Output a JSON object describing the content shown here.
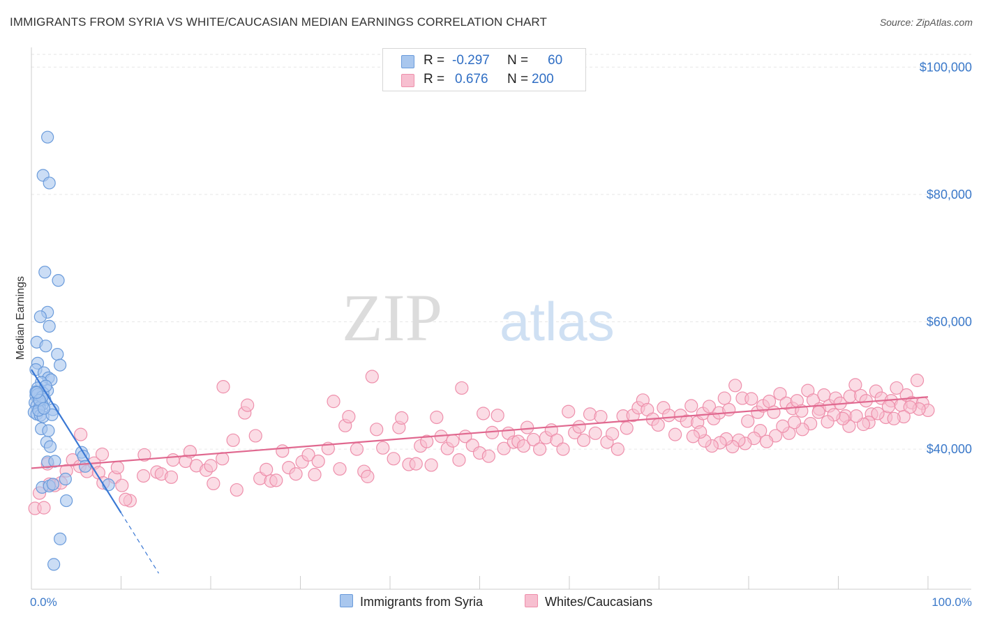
{
  "title": "IMMIGRANTS FROM SYRIA VS WHITE/CAUCASIAN MEDIAN EARNINGS CORRELATION CHART",
  "source": "Source: ZipAtlas.com",
  "watermark": {
    "left": "ZIP",
    "right": "atlas"
  },
  "colors": {
    "blue_fill": "#a9c7ee",
    "blue_stroke": "#6a9bdb",
    "blue_line": "#3a78d4",
    "pink_fill": "#f7bfd0",
    "pink_stroke": "#ee8fab",
    "pink_line": "#e0688f",
    "axis_text": "#3a78c9",
    "grid": "#e6e6e6"
  },
  "legend": {
    "rows": [
      {
        "r_label": "R =",
        "r_value": "-0.297",
        "n_label": "N =",
        "n_value": "60",
        "series": "blue"
      },
      {
        "r_label": "R =",
        "r_value": "0.676",
        "n_label": "N =",
        "n_value": "200",
        "series": "pink"
      }
    ]
  },
  "bottom_legend": {
    "blue_label": "Immigrants from Syria",
    "pink_label": "Whites/Caucasians"
  },
  "chart_data": {
    "type": "scatter",
    "title": "IMMIGRANTS FROM SYRIA VS WHITE/CAUCASIAN MEDIAN EARNINGS CORRELATION CHART",
    "xlabel": "",
    "ylabel": "Median Earnings",
    "xlim": [
      0,
      100
    ],
    "ylim": [
      18000,
      102000
    ],
    "x_tick_labels": [
      {
        "value": 0,
        "label": "0.0%"
      },
      {
        "value": 100,
        "label": "100.0%"
      }
    ],
    "y_ticks": [
      {
        "value": 40000,
        "label": "$40,000"
      },
      {
        "value": 60000,
        "label": "$60,000"
      },
      {
        "value": 80000,
        "label": "$80,000"
      },
      {
        "value": 100000,
        "label": "$100,000"
      }
    ],
    "series": [
      {
        "name": "Immigrants from Syria",
        "color": "blue",
        "trend": {
          "x0": 0,
          "y0": 52500,
          "x1": 10,
          "y1": 30000,
          "dash_to_x": 14.2,
          "dash_to_y": 20500
        },
        "points": [
          [
            1.8,
            89000
          ],
          [
            1.3,
            83000
          ],
          [
            2.0,
            81800
          ],
          [
            1.5,
            67800
          ],
          [
            3.0,
            66500
          ],
          [
            1.8,
            61500
          ],
          [
            1.0,
            60800
          ],
          [
            2.0,
            59300
          ],
          [
            0.6,
            56800
          ],
          [
            1.6,
            56200
          ],
          [
            2.9,
            54900
          ],
          [
            0.7,
            53500
          ],
          [
            3.2,
            53200
          ],
          [
            0.5,
            52500
          ],
          [
            1.4,
            52000
          ],
          [
            1.9,
            51200
          ],
          [
            2.2,
            50900
          ],
          [
            1.1,
            50500
          ],
          [
            0.7,
            49600
          ],
          [
            1.8,
            49200
          ],
          [
            1.3,
            48800
          ],
          [
            0.5,
            48400
          ],
          [
            0.8,
            48000
          ],
          [
            1.5,
            47800
          ],
          [
            1.0,
            47500
          ],
          [
            0.4,
            47300
          ],
          [
            1.2,
            47000
          ],
          [
            0.6,
            46800
          ],
          [
            0.9,
            46500
          ],
          [
            2.4,
            46200
          ],
          [
            0.3,
            45800
          ],
          [
            0.6,
            45500
          ],
          [
            1.0,
            45300
          ],
          [
            1.3,
            45100
          ],
          [
            2.3,
            45400
          ],
          [
            0.8,
            46100
          ],
          [
            0.5,
            49000
          ],
          [
            0.7,
            48600
          ],
          [
            1.6,
            49900
          ],
          [
            1.2,
            48200
          ],
          [
            1.1,
            43200
          ],
          [
            1.9,
            42900
          ],
          [
            1.7,
            41100
          ],
          [
            2.1,
            40400
          ],
          [
            5.6,
            39500
          ],
          [
            5.8,
            38900
          ],
          [
            1.8,
            38000
          ],
          [
            2.6,
            38100
          ],
          [
            6.0,
            37300
          ],
          [
            3.8,
            35300
          ],
          [
            8.6,
            34400
          ],
          [
            1.2,
            34000
          ],
          [
            2.0,
            34200
          ],
          [
            2.4,
            34500
          ],
          [
            3.9,
            31900
          ],
          [
            3.2,
            25900
          ],
          [
            2.5,
            21900
          ],
          [
            0.9,
            47700
          ],
          [
            1.4,
            46400
          ],
          [
            0.6,
            48900
          ]
        ]
      },
      {
        "name": "Whites/Caucasians",
        "color": "pink",
        "trend": {
          "x0": 0,
          "y0": 37000,
          "x1": 100,
          "y1": 48200
        },
        "points": [
          [
            0.4,
            30700
          ],
          [
            1.4,
            30800
          ],
          [
            0.9,
            33100
          ],
          [
            2.0,
            34500
          ],
          [
            2.6,
            34300
          ],
          [
            3.3,
            34700
          ],
          [
            1.8,
            37700
          ],
          [
            3.9,
            36600
          ],
          [
            4.6,
            38300
          ],
          [
            5.4,
            37300
          ],
          [
            6.2,
            36500
          ],
          [
            7.0,
            37800
          ],
          [
            7.5,
            36300
          ],
          [
            8.0,
            34700
          ],
          [
            9.3,
            35600
          ],
          [
            5.5,
            42300
          ],
          [
            7.9,
            39200
          ],
          [
            9.6,
            37100
          ],
          [
            10.1,
            34300
          ],
          [
            11.0,
            31900
          ],
          [
            10.5,
            32100
          ],
          [
            12.5,
            35800
          ],
          [
            12.6,
            39100
          ],
          [
            14.0,
            36400
          ],
          [
            14.5,
            36100
          ],
          [
            15.6,
            35600
          ],
          [
            15.8,
            38300
          ],
          [
            17.2,
            38100
          ],
          [
            17.7,
            39600
          ],
          [
            18.4,
            37400
          ],
          [
            19.5,
            36700
          ],
          [
            20.0,
            37400
          ],
          [
            20.3,
            34600
          ],
          [
            21.3,
            38500
          ],
          [
            21.4,
            49800
          ],
          [
            22.5,
            41400
          ],
          [
            22.9,
            33600
          ],
          [
            23.8,
            45700
          ],
          [
            24.1,
            46900
          ],
          [
            25.0,
            42100
          ],
          [
            25.5,
            35400
          ],
          [
            26.2,
            36800
          ],
          [
            26.7,
            35000
          ],
          [
            27.3,
            35100
          ],
          [
            28.0,
            39700
          ],
          [
            28.7,
            37100
          ],
          [
            29.5,
            36100
          ],
          [
            30.2,
            38000
          ],
          [
            30.9,
            39100
          ],
          [
            31.6,
            36000
          ],
          [
            32.0,
            38100
          ],
          [
            33.1,
            40100
          ],
          [
            33.7,
            47500
          ],
          [
            34.4,
            36900
          ],
          [
            35.0,
            43700
          ],
          [
            35.4,
            45100
          ],
          [
            36.3,
            40000
          ],
          [
            37.1,
            36500
          ],
          [
            37.5,
            35700
          ],
          [
            38.0,
            51400
          ],
          [
            38.5,
            43100
          ],
          [
            39.2,
            40200
          ],
          [
            40.4,
            38500
          ],
          [
            41.0,
            43400
          ],
          [
            41.3,
            44900
          ],
          [
            42.1,
            37600
          ],
          [
            42.9,
            37700
          ],
          [
            43.4,
            40500
          ],
          [
            44.1,
            41200
          ],
          [
            44.6,
            37500
          ],
          [
            45.2,
            45000
          ],
          [
            45.7,
            42000
          ],
          [
            46.4,
            40100
          ],
          [
            47.0,
            41300
          ],
          [
            47.7,
            38300
          ],
          [
            48.0,
            49600
          ],
          [
            48.4,
            42000
          ],
          [
            49.2,
            40600
          ],
          [
            50.0,
            39400
          ],
          [
            50.4,
            45600
          ],
          [
            51.0,
            38900
          ],
          [
            51.4,
            42600
          ],
          [
            52.0,
            45300
          ],
          [
            52.7,
            40100
          ],
          [
            53.2,
            42500
          ],
          [
            53.8,
            41100
          ],
          [
            54.3,
            41200
          ],
          [
            54.9,
            40500
          ],
          [
            55.3,
            43400
          ],
          [
            56.0,
            41500
          ],
          [
            56.7,
            40000
          ],
          [
            57.4,
            41800
          ],
          [
            58.0,
            43000
          ],
          [
            58.6,
            41400
          ],
          [
            59.3,
            40000
          ],
          [
            59.9,
            45900
          ],
          [
            60.6,
            42600
          ],
          [
            61.1,
            43500
          ],
          [
            61.6,
            41400
          ],
          [
            62.3,
            45500
          ],
          [
            62.9,
            42500
          ],
          [
            63.5,
            45100
          ],
          [
            64.2,
            41100
          ],
          [
            64.8,
            42400
          ],
          [
            65.4,
            40000
          ],
          [
            66.0,
            45200
          ],
          [
            66.4,
            43300
          ],
          [
            67.1,
            45300
          ],
          [
            67.7,
            46500
          ],
          [
            68.2,
            47700
          ],
          [
            68.7,
            46200
          ],
          [
            69.3,
            44700
          ],
          [
            69.9,
            43800
          ],
          [
            70.5,
            46500
          ],
          [
            71.1,
            45300
          ],
          [
            71.8,
            42300
          ],
          [
            72.4,
            45300
          ],
          [
            73.1,
            44400
          ],
          [
            73.6,
            46800
          ],
          [
            74.3,
            44200
          ],
          [
            74.9,
            45600
          ],
          [
            75.6,
            46700
          ],
          [
            76.1,
            44800
          ],
          [
            76.7,
            45700
          ],
          [
            77.3,
            48000
          ],
          [
            77.8,
            46200
          ],
          [
            78.5,
            50000
          ],
          [
            79.3,
            48000
          ],
          [
            79.9,
            44400
          ],
          [
            80.3,
            47900
          ],
          [
            81.0,
            45800
          ],
          [
            81.6,
            46800
          ],
          [
            82.3,
            47500
          ],
          [
            82.8,
            45800
          ],
          [
            83.5,
            48700
          ],
          [
            84.2,
            47200
          ],
          [
            84.9,
            46400
          ],
          [
            85.4,
            47600
          ],
          [
            85.9,
            46000
          ],
          [
            86.6,
            49200
          ],
          [
            87.2,
            47700
          ],
          [
            87.9,
            46300
          ],
          [
            88.4,
            48500
          ],
          [
            89.0,
            46800
          ],
          [
            89.7,
            48000
          ],
          [
            90.2,
            47200
          ],
          [
            90.8,
            45200
          ],
          [
            91.3,
            48300
          ],
          [
            91.9,
            50100
          ],
          [
            92.5,
            48400
          ],
          [
            93.1,
            47600
          ],
          [
            93.7,
            45500
          ],
          [
            94.2,
            49100
          ],
          [
            94.8,
            48000
          ],
          [
            95.3,
            45000
          ],
          [
            95.9,
            47600
          ],
          [
            96.5,
            49600
          ],
          [
            97.0,
            46900
          ],
          [
            97.6,
            48500
          ],
          [
            98.2,
            47300
          ],
          [
            98.8,
            50800
          ],
          [
            99.4,
            47200
          ],
          [
            100.0,
            46100
          ],
          [
            99.0,
            46300
          ],
          [
            98.0,
            46600
          ],
          [
            97.3,
            45100
          ],
          [
            96.2,
            44800
          ],
          [
            95.6,
            46700
          ],
          [
            94.4,
            45600
          ],
          [
            93.4,
            44200
          ],
          [
            92.8,
            43900
          ],
          [
            92.0,
            45200
          ],
          [
            91.2,
            43600
          ],
          [
            90.5,
            44800
          ],
          [
            89.5,
            45400
          ],
          [
            88.8,
            44300
          ],
          [
            87.8,
            45800
          ],
          [
            86.9,
            44000
          ],
          [
            86.0,
            43100
          ],
          [
            85.1,
            44200
          ],
          [
            84.5,
            42500
          ],
          [
            83.8,
            43600
          ],
          [
            83.0,
            42100
          ],
          [
            82.0,
            41200
          ],
          [
            81.3,
            42900
          ],
          [
            80.6,
            41700
          ],
          [
            79.6,
            40900
          ],
          [
            78.9,
            41400
          ],
          [
            78.2,
            40400
          ],
          [
            77.5,
            41600
          ],
          [
            76.8,
            41000
          ],
          [
            75.9,
            40500
          ],
          [
            75.1,
            41300
          ],
          [
            74.6,
            42700
          ],
          [
            73.8,
            42000
          ]
        ]
      }
    ]
  }
}
